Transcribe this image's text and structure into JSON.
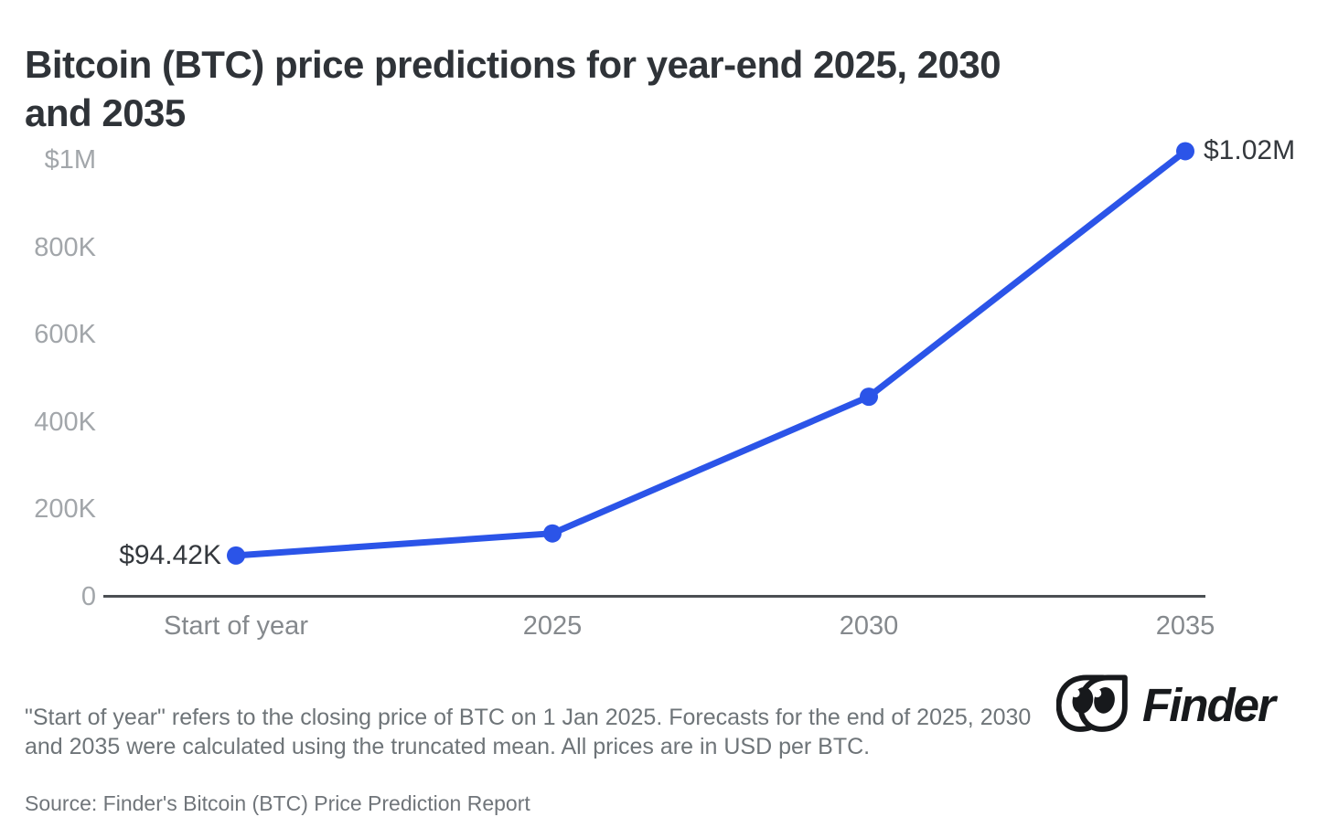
{
  "title": "Bitcoin (BTC) price predictions for year-end 2025, 2030\nand 2035",
  "chart_data": {
    "type": "line",
    "title": "Bitcoin (BTC) price predictions for year-end 2025, 2030 and 2035",
    "categories": [
      "Start of year",
      "2025",
      "2030",
      "2035"
    ],
    "values": [
      94420,
      145000,
      458000,
      1020000
    ],
    "point_labels": [
      {
        "index": 0,
        "text": "$94.42K",
        "side": "left"
      },
      {
        "index": 3,
        "text": "$1.02M",
        "side": "right"
      }
    ],
    "y_ticks": [
      {
        "label": "$1M",
        "value": 1000000
      },
      {
        "label": "800K",
        "value": 800000
      },
      {
        "label": "600K",
        "value": 600000
      },
      {
        "label": "400K",
        "value": 400000
      },
      {
        "label": "200K",
        "value": 200000
      },
      {
        "label": "0",
        "value": 0
      }
    ],
    "xlabel": "",
    "ylabel": "",
    "ylim": [
      0,
      1000000
    ],
    "grid": false,
    "legend": false,
    "line_color": "#2b54e8",
    "units": "USD per BTC"
  },
  "footnote": "\"Start of year\" refers to the closing price of BTC on 1 Jan 2025. Forecasts for the end of 2025, 2030 and 2035 were calculated using the truncated mean. All prices are in USD per BTC.",
  "source": "Source: Finder's Bitcoin (BTC) Price Prediction Report",
  "logo": {
    "text": "Finder",
    "mark": "finder-eyes-logo",
    "color": "#17191c"
  },
  "colors": {
    "accent_blue": "#2b54e8",
    "title_text": "#2f3338",
    "axis_line": "#4b4f53",
    "y_tick_text": "#a2a6aa",
    "x_tick_text": "#85898d",
    "footnote_text": "#6e7478"
  }
}
